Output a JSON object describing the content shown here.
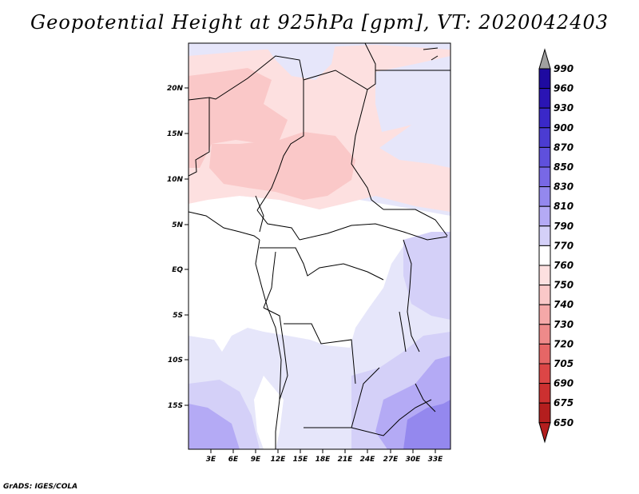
{
  "title": "Geopotential Height at 925hPa [gpm], VT: 2020042403",
  "credit": "GrADS: IGES/COLA",
  "map": {
    "lat_labels": [
      "20N",
      "15N",
      "10N",
      "5N",
      "EQ",
      "5S",
      "10S",
      "15S"
    ],
    "lon_labels": [
      "3E",
      "6E",
      "9E",
      "12E",
      "15E",
      "18E",
      "21E",
      "24E",
      "27E",
      "30E",
      "33E"
    ]
  },
  "colorbar": {
    "labels": [
      "990",
      "960",
      "930",
      "900",
      "870",
      "850",
      "830",
      "810",
      "790",
      "770",
      "760",
      "750",
      "740",
      "730",
      "720",
      "705",
      "690",
      "675",
      "650"
    ],
    "colors": [
      "#1e0aa0",
      "#2a14b4",
      "#3a28c8",
      "#4b3cd2",
      "#5f50dc",
      "#7868e6",
      "#9488ee",
      "#b4aaf5",
      "#d4d0f8",
      "#ffffff",
      "#fde0e0",
      "#fac8c8",
      "#f5a8a8",
      "#ee8a8a",
      "#e66666",
      "#dc4646",
      "#cc3030",
      "#b41e1e"
    ],
    "top_arrow_color": "#a0a0a0",
    "bottom_arrow_color": "#b41e1e"
  }
}
